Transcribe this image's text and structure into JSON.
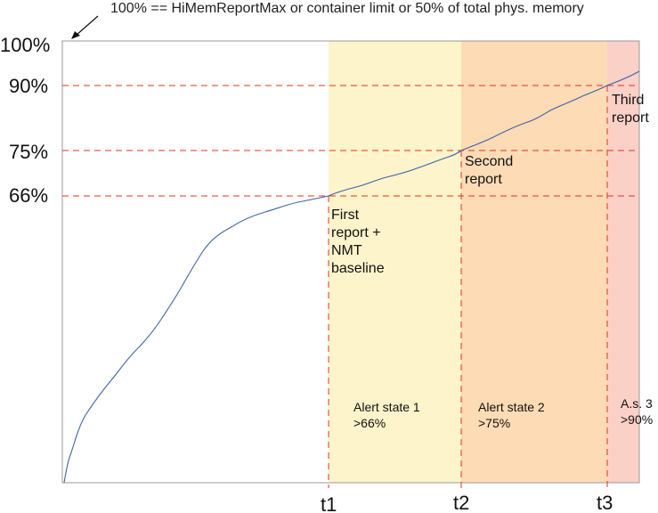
{
  "note": "100% == HiMemReportMax or container limit or 50% of total phys. memory",
  "y_labels": {
    "p100": "100%",
    "p90": "90%",
    "p75": "75%",
    "p66": "66%"
  },
  "t_labels": {
    "t1": "t1",
    "t2": "t2",
    "t3": "t3"
  },
  "reports": {
    "first": [
      "First",
      "report +",
      "NMT",
      "baseline"
    ],
    "second": [
      "Second",
      "report"
    ],
    "third": [
      "Third",
      "report"
    ]
  },
  "alerts": {
    "state1": [
      "Alert state 1",
      ">66%"
    ],
    "state2": [
      "Alert state 2",
      ">75%"
    ],
    "state3": [
      "A.s. 3",
      ">90%"
    ]
  },
  "colors": {
    "zone1": "#fdf4cb",
    "zone2": "#fddbb5",
    "zone3": "#fbd0c7",
    "guide": "#e0341e",
    "curve": "#3f62a6"
  }
}
